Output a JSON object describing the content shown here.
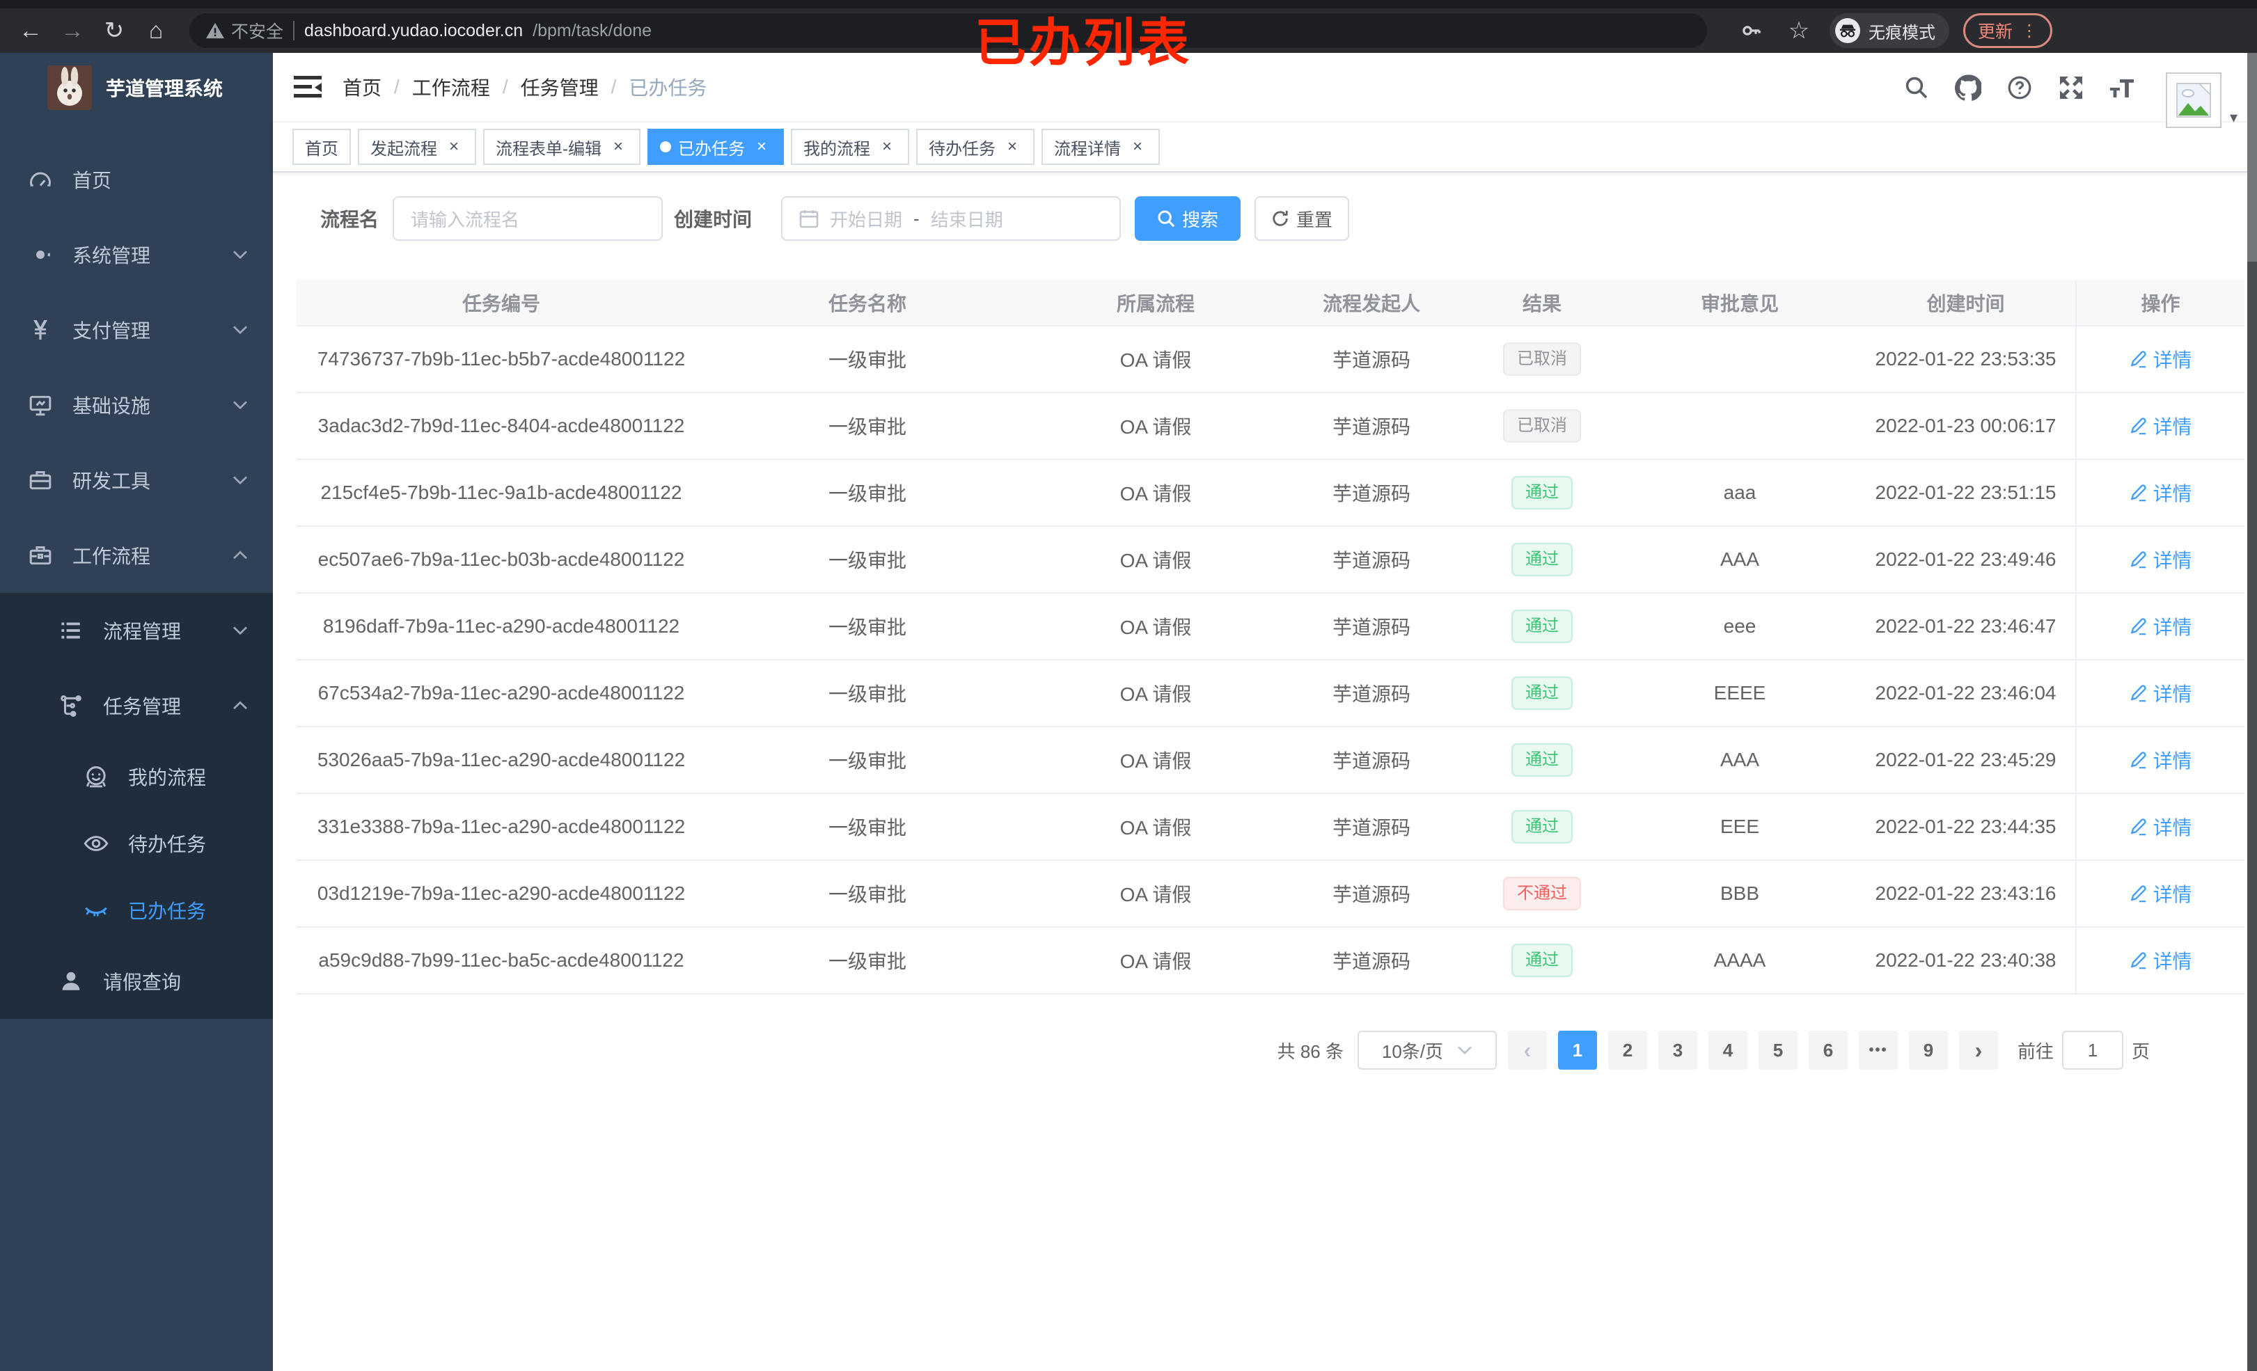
{
  "browser": {
    "security_label": "不安全",
    "url_host": "dashboard.yudao.iocoder.cn",
    "url_path": "/bpm/task/done",
    "incognito_label": "无痕模式",
    "update_label": "更新"
  },
  "annotation": {
    "text": "已办列表",
    "color": "#ff2600"
  },
  "sidebar": {
    "title": "芋道管理系统",
    "items": [
      {
        "label": "首页",
        "icon": "dashboard-icon",
        "level": 1,
        "chevron": null,
        "active": false,
        "submenu": false
      },
      {
        "label": "系统管理",
        "icon": "gear-icon",
        "level": 1,
        "chevron": "down",
        "active": false,
        "submenu": false
      },
      {
        "label": "支付管理",
        "icon": "yen-icon",
        "level": 1,
        "chevron": "down",
        "active": false,
        "submenu": false
      },
      {
        "label": "基础设施",
        "icon": "monitor-icon",
        "level": 1,
        "chevron": "down",
        "active": false,
        "submenu": false
      },
      {
        "label": "研发工具",
        "icon": "toolbox-icon",
        "level": 1,
        "chevron": "down",
        "active": false,
        "submenu": false
      },
      {
        "label": "工作流程",
        "icon": "briefcase-icon",
        "level": 1,
        "chevron": "up",
        "active": false,
        "submenu": false
      },
      {
        "label": "流程管理",
        "icon": "list-icon",
        "level": 2,
        "chevron": "down",
        "active": false,
        "submenu": true
      },
      {
        "label": "任务管理",
        "icon": "flow-icon",
        "level": 2,
        "chevron": "up",
        "active": false,
        "submenu": true
      },
      {
        "label": "我的流程",
        "icon": "face-icon",
        "level": 3,
        "chevron": null,
        "active": false,
        "submenu": true
      },
      {
        "label": "待办任务",
        "icon": "eye-open-icon",
        "level": 3,
        "chevron": null,
        "active": false,
        "submenu": true
      },
      {
        "label": "已办任务",
        "icon": "eye-closed-icon",
        "level": 3,
        "chevron": null,
        "active": true,
        "submenu": true
      },
      {
        "label": "请假查询",
        "icon": "user-icon",
        "level": 2,
        "chevron": null,
        "active": false,
        "submenu": true
      }
    ]
  },
  "navbar": {
    "breadcrumb": [
      "首页",
      "工作流程",
      "任务管理",
      "已办任务"
    ]
  },
  "tabs": [
    {
      "label": "首页",
      "active": false,
      "closable": false
    },
    {
      "label": "发起流程",
      "active": false,
      "closable": true
    },
    {
      "label": "流程表单-编辑",
      "active": false,
      "closable": true
    },
    {
      "label": "已办任务",
      "active": true,
      "closable": true
    },
    {
      "label": "我的流程",
      "active": false,
      "closable": true
    },
    {
      "label": "待办任务",
      "active": false,
      "closable": true
    },
    {
      "label": "流程详情",
      "active": false,
      "closable": true
    }
  ],
  "filter": {
    "name_label": "流程名",
    "name_placeholder": "请输入流程名",
    "time_label": "创建时间",
    "start_placeholder": "开始日期",
    "range_separator": "-",
    "end_placeholder": "结束日期",
    "search_label": "搜索",
    "reset_label": "重置"
  },
  "table": {
    "columns": [
      "任务编号",
      "任务名称",
      "所属流程",
      "流程发起人",
      "结果",
      "审批意见",
      "创建时间",
      "操作"
    ],
    "action_label": "详情",
    "rows": [
      {
        "id": "74736737-7b9b-11ec-b5b7-acde48001122",
        "name": "一级审批",
        "flow": "OA 请假",
        "initiator": "芋道源码",
        "result": "已取消",
        "result_type": "info",
        "opinion": "",
        "time": "2022-01-22 23:53:35",
        "action": "详情"
      },
      {
        "id": "3adac3d2-7b9d-11ec-8404-acde48001122",
        "name": "一级审批",
        "flow": "OA 请假",
        "initiator": "芋道源码",
        "result": "已取消",
        "result_type": "info",
        "opinion": "",
        "time": "2022-01-23 00:06:17",
        "action": "详情"
      },
      {
        "id": "215cf4e5-7b9b-11ec-9a1b-acde48001122",
        "name": "一级审批",
        "flow": "OA 请假",
        "initiator": "芋道源码",
        "result": "通过",
        "result_type": "success",
        "opinion": "aaa",
        "time": "2022-01-22 23:51:15",
        "action": "详情"
      },
      {
        "id": "ec507ae6-7b9a-11ec-b03b-acde48001122",
        "name": "一级审批",
        "flow": "OA 请假",
        "initiator": "芋道源码",
        "result": "通过",
        "result_type": "success",
        "opinion": "AAA",
        "time": "2022-01-22 23:49:46",
        "action": "详情"
      },
      {
        "id": "8196daff-7b9a-11ec-a290-acde48001122",
        "name": "一级审批",
        "flow": "OA 请假",
        "initiator": "芋道源码",
        "result": "通过",
        "result_type": "success",
        "opinion": "eee",
        "time": "2022-01-22 23:46:47",
        "action": "详情"
      },
      {
        "id": "67c534a2-7b9a-11ec-a290-acde48001122",
        "name": "一级审批",
        "flow": "OA 请假",
        "initiator": "芋道源码",
        "result": "通过",
        "result_type": "success",
        "opinion": "EEEE",
        "time": "2022-01-22 23:46:04",
        "action": "详情"
      },
      {
        "id": "53026aa5-7b9a-11ec-a290-acde48001122",
        "name": "一级审批",
        "flow": "OA 请假",
        "initiator": "芋道源码",
        "result": "通过",
        "result_type": "success",
        "opinion": "AAA",
        "time": "2022-01-22 23:45:29",
        "action": "详情"
      },
      {
        "id": "331e3388-7b9a-11ec-a290-acde48001122",
        "name": "一级审批",
        "flow": "OA 请假",
        "initiator": "芋道源码",
        "result": "通过",
        "result_type": "success",
        "opinion": "EEE",
        "time": "2022-01-22 23:44:35",
        "action": "详情"
      },
      {
        "id": "03d1219e-7b9a-11ec-a290-acde48001122",
        "name": "一级审批",
        "flow": "OA 请假",
        "initiator": "芋道源码",
        "result": "不通过",
        "result_type": "danger",
        "opinion": "BBB",
        "time": "2022-01-22 23:43:16",
        "action": "详情"
      },
      {
        "id": "a59c9d88-7b99-11ec-ba5c-acde48001122",
        "name": "一级审批",
        "flow": "OA 请假",
        "initiator": "芋道源码",
        "result": "通过",
        "result_type": "success",
        "opinion": "AAAA",
        "time": "2022-01-22 23:40:38",
        "action": "详情"
      }
    ]
  },
  "pagination": {
    "total": "共 86 条",
    "page_size": "10条/页",
    "prev_label": "‹",
    "next_label": "›",
    "pages": [
      "1",
      "2",
      "3",
      "4",
      "5",
      "6",
      "•••",
      "9"
    ],
    "active_page": "1",
    "goto_label": "前往",
    "goto_value": "1",
    "unit_label": "页"
  },
  "colors": {
    "accent": "#409eff",
    "success": "#3dc479",
    "danger": "#f25f5c",
    "info": "#909399",
    "sidebar": "#304156",
    "submenu": "#1f2d3d"
  }
}
